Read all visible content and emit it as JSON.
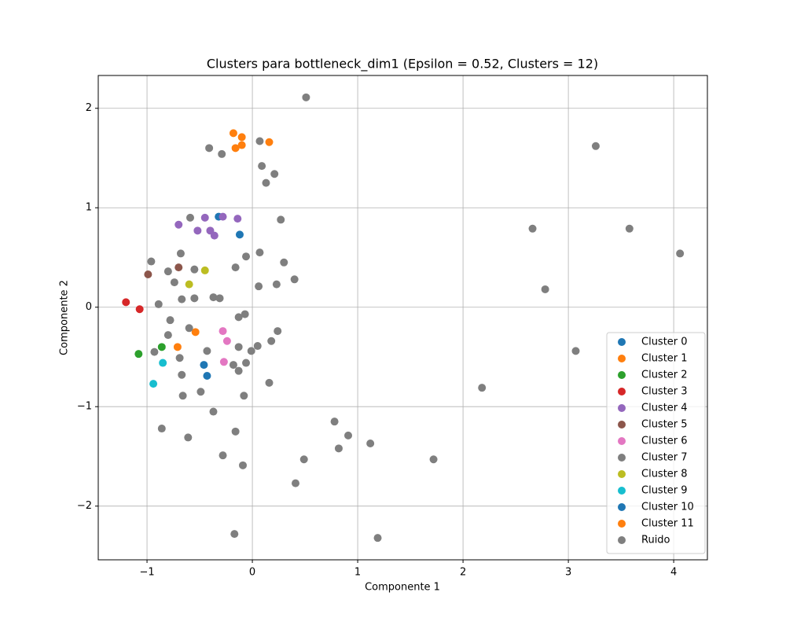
{
  "chart_data": {
    "type": "scatter",
    "title": "Clusters para bottleneck_dim1 (Epsilon = 0.52, Clusters = 12)",
    "x_label": "Componente 1",
    "y_label": "Componente 2",
    "xlim": [
      -1.463,
      4.32
    ],
    "ylim": [
      -2.54,
      2.33
    ],
    "xticks": [
      {
        "value": -1,
        "label": "−1"
      },
      0,
      1,
      2,
      3,
      4
    ],
    "yticks": [
      {
        "value": -2,
        "label": "−2"
      },
      {
        "value": -1,
        "label": "−1"
      },
      0,
      1,
      2
    ],
    "grid": true,
    "legend": "lower right",
    "series": [
      {
        "name": "Cluster 0",
        "color": "#1f77b4",
        "x": [
          -0.32,
          -0.12
        ],
        "y": [
          0.91,
          0.73
        ]
      },
      {
        "name": "Cluster 1",
        "color": "#ff7f0e",
        "x": [
          -0.54,
          -0.71
        ],
        "y": [
          -0.25,
          -0.4
        ]
      },
      {
        "name": "Cluster 2",
        "color": "#2ca02c",
        "x": [
          -0.86,
          -1.08
        ],
        "y": [
          -0.4,
          -0.47
        ]
      },
      {
        "name": "Cluster 3",
        "color": "#d62728",
        "x": [
          -1.2,
          -1.07
        ],
        "y": [
          0.05,
          -0.02
        ]
      },
      {
        "name": "Cluster 4",
        "color": "#9467bd",
        "x": [
          -0.7,
          -0.45,
          -0.28,
          -0.14,
          -0.52,
          -0.4,
          -0.36
        ],
        "y": [
          0.83,
          0.9,
          0.91,
          0.89,
          0.77,
          0.77,
          0.72
        ]
      },
      {
        "name": "Cluster 5",
        "color": "#8c564b",
        "x": [
          -0.99,
          -0.7
        ],
        "y": [
          0.33,
          0.4
        ]
      },
      {
        "name": "Cluster 6",
        "color": "#e377c2",
        "x": [
          -0.28,
          -0.24,
          -0.27
        ],
        "y": [
          -0.24,
          -0.34,
          -0.55
        ]
      },
      {
        "name": "Cluster 7",
        "color": "#7f7f7f",
        "x": [],
        "y": []
      },
      {
        "name": "Cluster 8",
        "color": "#bcbd22",
        "x": [
          -0.45,
          -0.6
        ],
        "y": [
          0.37,
          0.23
        ]
      },
      {
        "name": "Cluster 9",
        "color": "#17becf",
        "x": [
          -0.85,
          -0.94
        ],
        "y": [
          -0.56,
          -0.77
        ]
      },
      {
        "name": "Cluster 10",
        "color": "#1f77b4",
        "x": [
          -0.46,
          -0.43
        ],
        "y": [
          -0.58,
          -0.69
        ]
      },
      {
        "name": "Cluster 11",
        "color": "#ff7f0e",
        "x": [
          -0.18,
          -0.1,
          -0.16,
          -0.1,
          0.16
        ],
        "y": [
          1.75,
          1.71,
          1.6,
          1.63,
          1.66
        ]
      },
      {
        "name": "Ruido",
        "color": "#7f7f7f",
        "x": [
          0.51,
          3.26,
          -0.41,
          -0.29,
          0.07,
          0.09,
          0.21,
          0.13,
          -0.59,
          0.27,
          2.66,
          3.58,
          4.06,
          2.78,
          3.07,
          2.18,
          -0.96,
          -0.68,
          0.07,
          -0.06,
          0.3,
          -0.8,
          -0.55,
          -0.16,
          -0.74,
          0.23,
          0.4,
          0.06,
          -0.67,
          -0.55,
          -0.37,
          -0.31,
          -0.89,
          -0.78,
          -0.6,
          -0.13,
          -0.07,
          0.24,
          -0.8,
          0.18,
          -0.13,
          0.05,
          -0.01,
          -0.43,
          -0.93,
          -0.69,
          -0.18,
          -0.06,
          -0.13,
          -0.67,
          0.16,
          -0.49,
          -0.66,
          -0.08,
          -0.37,
          -0.86,
          -0.16,
          -0.61,
          0.78,
          0.91,
          1.12,
          0.82,
          0.49,
          1.72,
          -0.28,
          -0.09,
          0.41,
          -0.17,
          1.19
        ],
        "y": [
          2.11,
          1.62,
          1.6,
          1.54,
          1.67,
          1.42,
          1.34,
          1.25,
          0.9,
          0.88,
          0.79,
          0.79,
          0.54,
          0.18,
          -0.44,
          -0.81,
          0.46,
          0.54,
          0.55,
          0.51,
          0.45,
          0.36,
          0.38,
          0.4,
          0.25,
          0.23,
          0.28,
          0.21,
          0.08,
          0.09,
          0.1,
          0.09,
          0.03,
          -0.13,
          -0.21,
          -0.1,
          -0.07,
          -0.24,
          -0.28,
          -0.34,
          -0.4,
          -0.39,
          -0.44,
          -0.44,
          -0.45,
          -0.51,
          -0.58,
          -0.56,
          -0.64,
          -0.68,
          -0.76,
          -0.85,
          -0.89,
          -0.89,
          -1.05,
          -1.22,
          -1.25,
          -1.31,
          -1.15,
          -1.29,
          -1.37,
          -1.42,
          -1.53,
          -1.53,
          -1.49,
          -1.59,
          -1.77,
          -2.28,
          -2.32
        ]
      }
    ]
  }
}
